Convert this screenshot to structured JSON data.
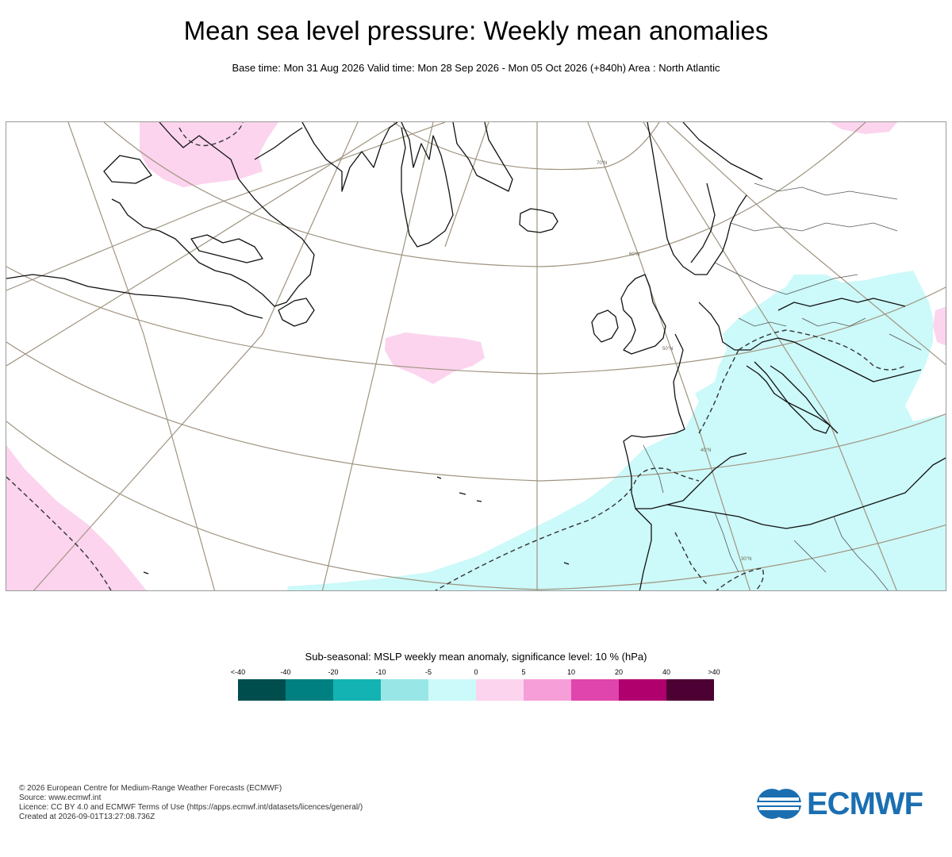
{
  "header": {
    "title": "Mean sea level pressure: Weekly mean anomalies",
    "subtitle": "Base time: Mon 31 Aug 2026 Valid time: Mon 28 Sep 2026 - Mon 05 Oct 2026 (+840h) Area : North Atlantic"
  },
  "map": {
    "lat_labels": [
      "70°N",
      "60°N",
      "50°N",
      "40°N",
      "30°N"
    ]
  },
  "legend": {
    "title": "Sub-seasonal: MSLP weekly mean anomaly, significance level: 10 % (hPa)",
    "ticks": [
      "<-40",
      "-40",
      "-20",
      "-10",
      "-5",
      "0",
      "5",
      "10",
      "20",
      "40",
      ">40"
    ],
    "colors": [
      "#004d4d",
      "#008080",
      "#14b3b3",
      "#99e6e6",
      "#ccf9f9",
      "#fcd4ee",
      "#f69ed8",
      "#e045ad",
      "#b0006e",
      "#4d0033"
    ]
  },
  "footer": {
    "copyright": "© 2026 European Centre for Medium-Range Weather Forecasts (ECMWF)",
    "source": "Source: www.ecmwf.int",
    "licence": "Licence: CC BY 4.0 and ECMWF Terms of Use (https://apps.ecmwf.int/datasets/licences/general/)",
    "created": "Created at 2026-09-01T13:27:08.736Z"
  },
  "logo": {
    "text": "ECMWF",
    "color": "#1b6fb1"
  }
}
